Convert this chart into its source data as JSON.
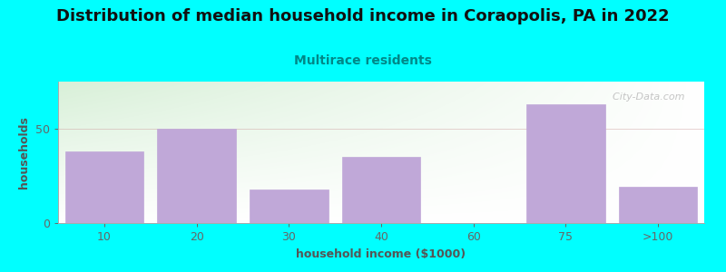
{
  "title": "Distribution of median household income in Coraopolis, PA in 2022",
  "subtitle": "Multirace residents",
  "xlabel": "household income ($1000)",
  "ylabel": "households",
  "background_color": "#00FFFF",
  "bar_color": "#c0a8d8",
  "categories": [
    "10",
    "20",
    "30",
    "40",
    "60",
    "75",
    ">100"
  ],
  "values": [
    38,
    50,
    18,
    35,
    0,
    63,
    19
  ],
  "ylim": [
    0,
    75
  ],
  "yticks": [
    0,
    50
  ],
  "title_fontsize": 13,
  "subtitle_fontsize": 10,
  "axis_label_fontsize": 9,
  "tick_fontsize": 9,
  "watermark": "  City-Data.com",
  "subtitle_color": "#008888",
  "title_color": "#111111",
  "label_color": "#555555"
}
